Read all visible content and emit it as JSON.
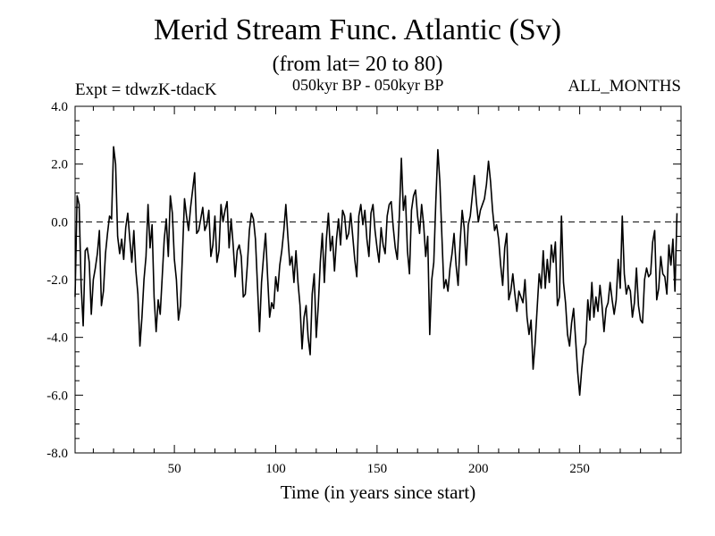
{
  "chart_data": {
    "type": "line",
    "title": "Merid Stream Func. Atlantic (Sv)",
    "subtitle": "(from lat= 20 to 80)",
    "annotations": {
      "left": "Expt = tdwzK-tdacK",
      "center": "050kyr BP - 050kyr BP",
      "right": "ALL_MONTHS"
    },
    "xlabel": "Time (in years since start)",
    "ylabel": "",
    "xlim": [
      1,
      300
    ],
    "ylim": [
      -8.0,
      4.0
    ],
    "x_ticks": [
      50,
      100,
      150,
      200,
      250
    ],
    "x_tick_labels": [
      "50",
      "100",
      "150",
      "200",
      "250"
    ],
    "y_ticks": [
      -8.0,
      -6.0,
      -4.0,
      -2.0,
      0.0,
      2.0,
      4.0
    ],
    "y_tick_labels": [
      "-8.0",
      "-6.0",
      "-4.0",
      "-2.0",
      "0.0",
      "2.0",
      "4.0"
    ],
    "reference_line": {
      "y": 0.0,
      "style": "dashed"
    },
    "grid": false,
    "series": [
      {
        "x_start": 1,
        "x_step": 1,
        "values": [
          -2.6,
          0.9,
          0.6,
          -2.2,
          -3.6,
          -1.0,
          -0.9,
          -1.4,
          -3.2,
          -2.0,
          -1.6,
          -1.1,
          -0.3,
          -2.9,
          -2.4,
          -1.1,
          -0.4,
          0.2,
          0.1,
          2.6,
          2.0,
          -0.5,
          -1.1,
          -0.6,
          -1.3,
          -0.2,
          0.3,
          -0.6,
          -1.4,
          -0.3,
          -1.7,
          -2.5,
          -4.3,
          -3.3,
          -2.0,
          -1.2,
          0.6,
          -0.9,
          -0.1,
          -2.6,
          -3.8,
          -2.7,
          -3.2,
          -1.9,
          -0.6,
          0.1,
          -1.2,
          0.9,
          0.3,
          -1.3,
          -2.0,
          -3.4,
          -2.9,
          -1.1,
          0.8,
          0.2,
          -0.3,
          0.5,
          1.1,
          1.7,
          -0.4,
          -0.3,
          0.1,
          0.5,
          -0.3,
          -0.1,
          0.4,
          -1.2,
          -0.8,
          0.2,
          -1.4,
          -1.0,
          0.6,
          0.0,
          0.4,
          0.7,
          -0.9,
          0.1,
          -0.8,
          -1.9,
          -1.0,
          -0.8,
          -1.2,
          -2.6,
          -2.5,
          -1.5,
          -0.3,
          0.3,
          0.1,
          -0.6,
          -2.2,
          -3.8,
          -2.1,
          -1.2,
          -0.4,
          -1.9,
          -3.3,
          -2.8,
          -3.0,
          -1.9,
          -2.4,
          -1.5,
          -1.0,
          -0.3,
          0.6,
          -0.5,
          -1.5,
          -1.2,
          -2.1,
          -1.0,
          -2.1,
          -2.9,
          -4.4,
          -3.3,
          -2.9,
          -4.0,
          -4.6,
          -2.5,
          -1.8,
          -4.0,
          -2.9,
          -1.4,
          -0.4,
          -2.1,
          -0.6,
          0.3,
          -1.0,
          -0.5,
          -1.7,
          -0.6,
          0.1,
          -0.8,
          0.4,
          0.2,
          -0.6,
          -0.4,
          0.3,
          -0.5,
          -1.3,
          -1.9,
          0.2,
          0.6,
          -0.1,
          0.4,
          -0.6,
          -1.2,
          0.3,
          0.6,
          -0.3,
          -0.9,
          -1.4,
          -0.2,
          -0.8,
          -1.1,
          0.2,
          0.6,
          0.7,
          -0.2,
          -0.9,
          -1.3,
          0.2,
          2.2,
          0.4,
          0.9,
          -1.0,
          -1.8,
          0.4,
          0.9,
          1.1,
          0.2,
          -0.4,
          0.6,
          -0.1,
          -1.2,
          -0.5,
          -3.9,
          -2.0,
          -1.4,
          0.7,
          2.5,
          1.4,
          -0.5,
          -2.3,
          -2.0,
          -2.4,
          -1.6,
          -1.1,
          -0.4,
          -1.5,
          -2.2,
          -0.7,
          0.4,
          -0.2,
          -1.5,
          -0.1,
          0.2,
          0.9,
          1.6,
          0.7,
          0.0,
          0.4,
          0.6,
          0.8,
          1.3,
          2.1,
          1.4,
          0.4,
          -0.3,
          -0.1,
          -0.6,
          -1.5,
          -2.2,
          -0.9,
          -0.4,
          -2.7,
          -2.4,
          -1.8,
          -2.5,
          -3.1,
          -2.4,
          -2.6,
          -2.8,
          -2.0,
          -3.3,
          -3.9,
          -3.4,
          -5.1,
          -4.2,
          -3.0,
          -1.8,
          -2.3,
          -1.0,
          -2.3,
          -1.3,
          -2.1,
          -0.8,
          -1.4,
          -0.7,
          -2.9,
          -2.6,
          0.2,
          -2.1,
          -2.8,
          -3.9,
          -4.3,
          -3.5,
          -3.0,
          -4.1,
          -5.2,
          -6.0,
          -5.1,
          -4.4,
          -4.2,
          -2.7,
          -3.4,
          -2.1,
          -3.3,
          -2.6,
          -3.1,
          -2.2,
          -2.9,
          -3.8,
          -3.0,
          -2.8,
          -2.1,
          -2.7,
          -3.2,
          -2.7,
          -1.3,
          -2.3,
          0.2,
          -1.8,
          -2.5,
          -2.2,
          -2.4,
          -3.3,
          -2.8,
          -1.6,
          -2.9,
          -3.4,
          -3.5,
          -2.0,
          -1.6,
          -1.9,
          -1.8,
          -0.7,
          -0.3,
          -2.7,
          -2.3,
          -1.2,
          -1.8,
          -1.9,
          -2.5,
          -0.8,
          -1.5,
          -0.6,
          -2.4,
          0.3
        ]
      }
    ]
  }
}
